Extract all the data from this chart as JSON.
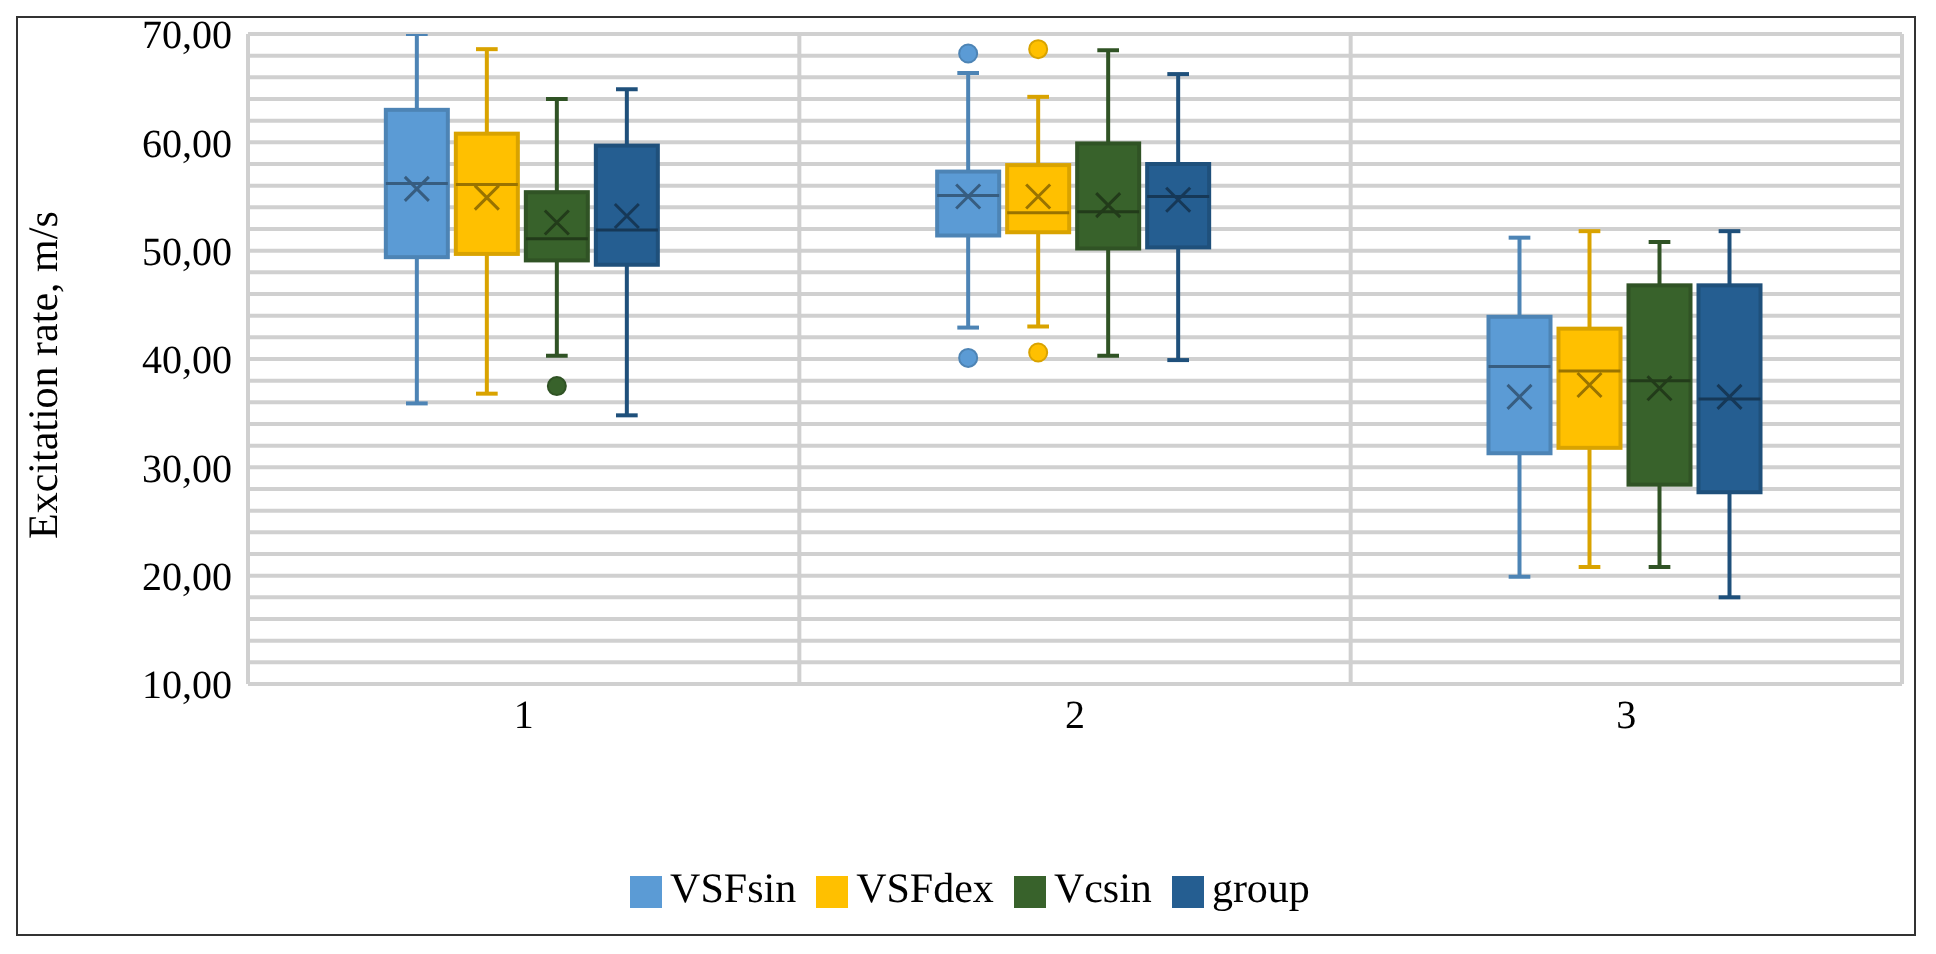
{
  "chart_data": {
    "type": "box",
    "ylabel": "Excitation rate, m/s",
    "categories": [
      "1",
      "2",
      "3"
    ],
    "ylim": [
      10,
      70
    ],
    "yticks": [
      {
        "value": 10,
        "label": "10,00"
      },
      {
        "value": 12,
        "label": null
      },
      {
        "value": 14,
        "label": null
      },
      {
        "value": 16,
        "label": null
      },
      {
        "value": 18,
        "label": null
      },
      {
        "value": 20,
        "label": "20,00"
      },
      {
        "value": 22,
        "label": null
      },
      {
        "value": 24,
        "label": null
      },
      {
        "value": 26,
        "label": null
      },
      {
        "value": 28,
        "label": null
      },
      {
        "value": 30,
        "label": "30,00"
      },
      {
        "value": 32,
        "label": null
      },
      {
        "value": 34,
        "label": null
      },
      {
        "value": 36,
        "label": null
      },
      {
        "value": 38,
        "label": null
      },
      {
        "value": 40,
        "label": "40,00"
      },
      {
        "value": 42,
        "label": null
      },
      {
        "value": 44,
        "label": null
      },
      {
        "value": 46,
        "label": null
      },
      {
        "value": 48,
        "label": null
      },
      {
        "value": 50,
        "label": "50,00"
      },
      {
        "value": 52,
        "label": null
      },
      {
        "value": 54,
        "label": null
      },
      {
        "value": 56,
        "label": null
      },
      {
        "value": 58,
        "label": null
      },
      {
        "value": 60,
        "label": "60,00"
      },
      {
        "value": 62,
        "label": null
      },
      {
        "value": 64,
        "label": null
      },
      {
        "value": 66,
        "label": null
      },
      {
        "value": 68,
        "label": null
      },
      {
        "value": 70,
        "label": "70,00"
      }
    ],
    "grid": true,
    "legend": "bottom",
    "series": [
      {
        "name": "VSFsin",
        "color": "#5b9bd5",
        "boxes": [
          {
            "low": 35.9,
            "q1": 49.4,
            "median": 56.2,
            "q3": 63.0,
            "high": 70.0,
            "mean": 55.7
          },
          {
            "low": 42.9,
            "q1": 51.4,
            "median": 55.1,
            "q3": 57.3,
            "high": 66.4,
            "mean": 55.0,
            "outliers": [
              68.2,
              40.1
            ]
          },
          {
            "low": 19.9,
            "q1": 31.3,
            "median": 39.3,
            "q3": 43.9,
            "high": 51.2,
            "mean": 36.5
          }
        ]
      },
      {
        "name": "VSFdex",
        "color": "#ffc000",
        "boxes": [
          {
            "low": 36.8,
            "q1": 49.7,
            "median": 56.1,
            "q3": 60.8,
            "high": 68.6,
            "mean": 54.9
          },
          {
            "low": 43.0,
            "q1": 51.7,
            "median": 53.5,
            "q3": 57.9,
            "high": 64.2,
            "mean": 55.0,
            "outliers": [
              68.6,
              40.6
            ]
          },
          {
            "low": 20.8,
            "q1": 31.8,
            "median": 38.9,
            "q3": 42.8,
            "high": 51.8,
            "mean": 37.6
          }
        ]
      },
      {
        "name": "Vcsin",
        "color": "#38622b",
        "boxes": [
          {
            "low": 40.3,
            "q1": 49.1,
            "median": 51.1,
            "q3": 55.4,
            "high": 64.0,
            "mean": 52.6,
            "outliers": [
              37.5
            ]
          },
          {
            "low": 40.3,
            "q1": 50.2,
            "median": 53.6,
            "q3": 59.9,
            "high": 68.5,
            "mean": 54.2
          },
          {
            "low": 20.8,
            "q1": 28.4,
            "median": 38.0,
            "q3": 46.8,
            "high": 50.8,
            "mean": 37.3
          }
        ]
      },
      {
        "name": "group",
        "color": "#255e91",
        "boxes": [
          {
            "low": 34.8,
            "q1": 48.7,
            "median": 51.9,
            "q3": 59.7,
            "high": 64.9,
            "mean": 53.2
          },
          {
            "low": 39.9,
            "q1": 50.3,
            "median": 55.0,
            "q3": 58.0,
            "high": 66.3,
            "mean": 54.7
          },
          {
            "low": 18.0,
            "q1": 27.7,
            "median": 36.3,
            "q3": 46.8,
            "high": 51.8,
            "mean": 36.5
          }
        ]
      }
    ]
  }
}
